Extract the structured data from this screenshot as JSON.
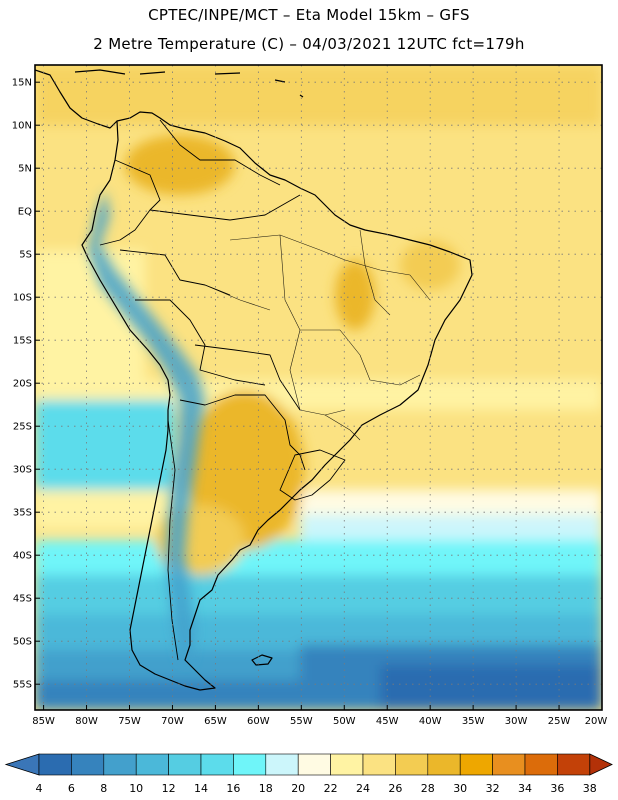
{
  "header": {
    "line1": "CPTEC/INPE/MCT –  Eta Model 15km – GFS",
    "line2": "2 Metre Temperature (C) – 04/03/2021 12UTC fct=179h"
  },
  "map": {
    "lat_range": [
      -58,
      17
    ],
    "lon_range": [
      -86,
      -20
    ],
    "lat_labels": [
      "15N",
      "10N",
      "5N",
      "EQ",
      "5S",
      "10S",
      "15S",
      "20S",
      "25S",
      "30S",
      "35S",
      "40S",
      "45S",
      "50S",
      "55S"
    ],
    "lat_values": [
      15,
      10,
      5,
      0,
      -5,
      -10,
      -15,
      -20,
      -25,
      -30,
      -35,
      -40,
      -45,
      -50,
      -55
    ],
    "lon_labels": [
      "85W",
      "80W",
      "75W",
      "70W",
      "65W",
      "60W",
      "55W",
      "50W",
      "45W",
      "40W",
      "35W",
      "30W",
      "25W",
      "20W"
    ],
    "lon_values": [
      -85,
      -80,
      -75,
      -70,
      -65,
      -60,
      -55,
      -50,
      -45,
      -40,
      -35,
      -30,
      -25,
      -20
    ]
  },
  "colorbar": {
    "labels": [
      "4",
      "6",
      "8",
      "10",
      "12",
      "14",
      "16",
      "18",
      "20",
      "22",
      "24",
      "26",
      "28",
      "30",
      "32",
      "34",
      "36",
      "38"
    ],
    "colors": [
      "#2b6cb0",
      "#3683bd",
      "#43a0cc",
      "#4bb8d9",
      "#55cde2",
      "#5cdceb",
      "#6ff5f9",
      "#ccf6fb",
      "#fffbe3",
      "#fff3a3",
      "#fbe282",
      "#f3cc52",
      "#ebb72a",
      "#eea700",
      "#e88f1f",
      "#dc6c0a",
      "#c34108"
    ],
    "low_color": "#3a76b8",
    "high_color": "#b33108"
  }
}
